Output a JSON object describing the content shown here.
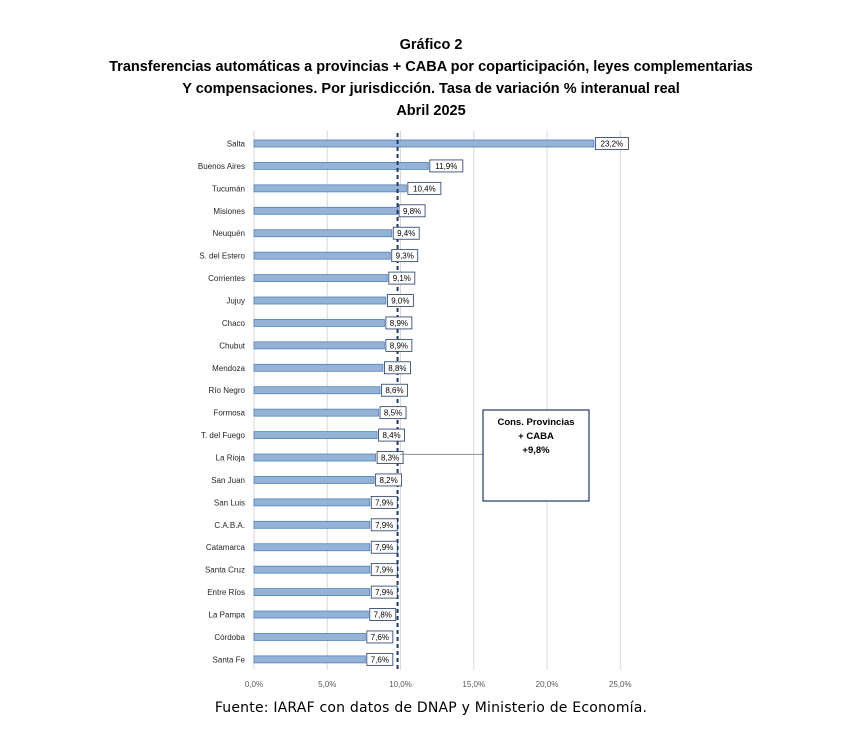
{
  "header": {
    "figure_label": "Gráfico 2",
    "title_line1": "Transferencias automáticas  a provincias  + CABA por coparticipación,  leyes complementarias",
    "title_line2": "Y compensaciones.  Por jurisdicción. Tasa de variación % interanual real",
    "period": "Abril 2025"
  },
  "chart_data": {
    "type": "bar",
    "orientation": "horizontal",
    "categories": [
      "Salta",
      "Buenos Aires",
      "Tucumán",
      "Misiones",
      "Neuquén",
      "S. del Estero",
      "Corrientes",
      "Jujuy",
      "Chaco",
      "Chubut",
      "Mendoza",
      "Río Negro",
      "Formosa",
      "T. del Fuego",
      "La Rioja",
      "San Juan",
      "San Luis",
      "C.A.B.A.",
      "Catamarca",
      "Santa Cruz",
      "Entre Ríos",
      "La Pampa",
      "Córdoba",
      "Santa Fe"
    ],
    "values": [
      23.2,
      11.9,
      10.4,
      9.8,
      9.4,
      9.3,
      9.1,
      9.0,
      8.9,
      8.9,
      8.8,
      8.6,
      8.5,
      8.4,
      8.3,
      8.2,
      7.9,
      7.9,
      7.9,
      7.9,
      7.9,
      7.8,
      7.6,
      7.6
    ],
    "value_labels": [
      "23,2%",
      "11,9%",
      "10,4%",
      "9,8%",
      "9,4%",
      "9,3%",
      "9,1%",
      "9,0%",
      "8,9%",
      "8,9%",
      "8,8%",
      "8,6%",
      "8,5%",
      "8,4%",
      "8,3%",
      "8,2%",
      "7,9%",
      "7,9%",
      "7,9%",
      "7,9%",
      "7,9%",
      "7,8%",
      "7,6%",
      "7,6%"
    ],
    "x_ticks": [
      0,
      5,
      10,
      15,
      20,
      25
    ],
    "x_tick_labels": [
      "0,0%",
      "5,0%",
      "10,0%",
      "15,0%",
      "20,0%",
      "25,0%"
    ],
    "xlim": [
      0,
      25
    ],
    "grid": "vertical",
    "reference_line": {
      "value": 9.8,
      "style": "dashed",
      "annotation_lines": [
        "Cons. Provincias",
        "+ CABA",
        "+9,8%"
      ]
    },
    "colors": {
      "bar_fill": "#95b3d7",
      "bar_stroke": "#4f81bd",
      "reference_line": "#1f3864",
      "label_border": "#1f3864",
      "grid": "#d9d9d9"
    }
  },
  "footer": {
    "source": "Fuente: IARAF con datos de DNAP y Ministerio de Economía."
  }
}
